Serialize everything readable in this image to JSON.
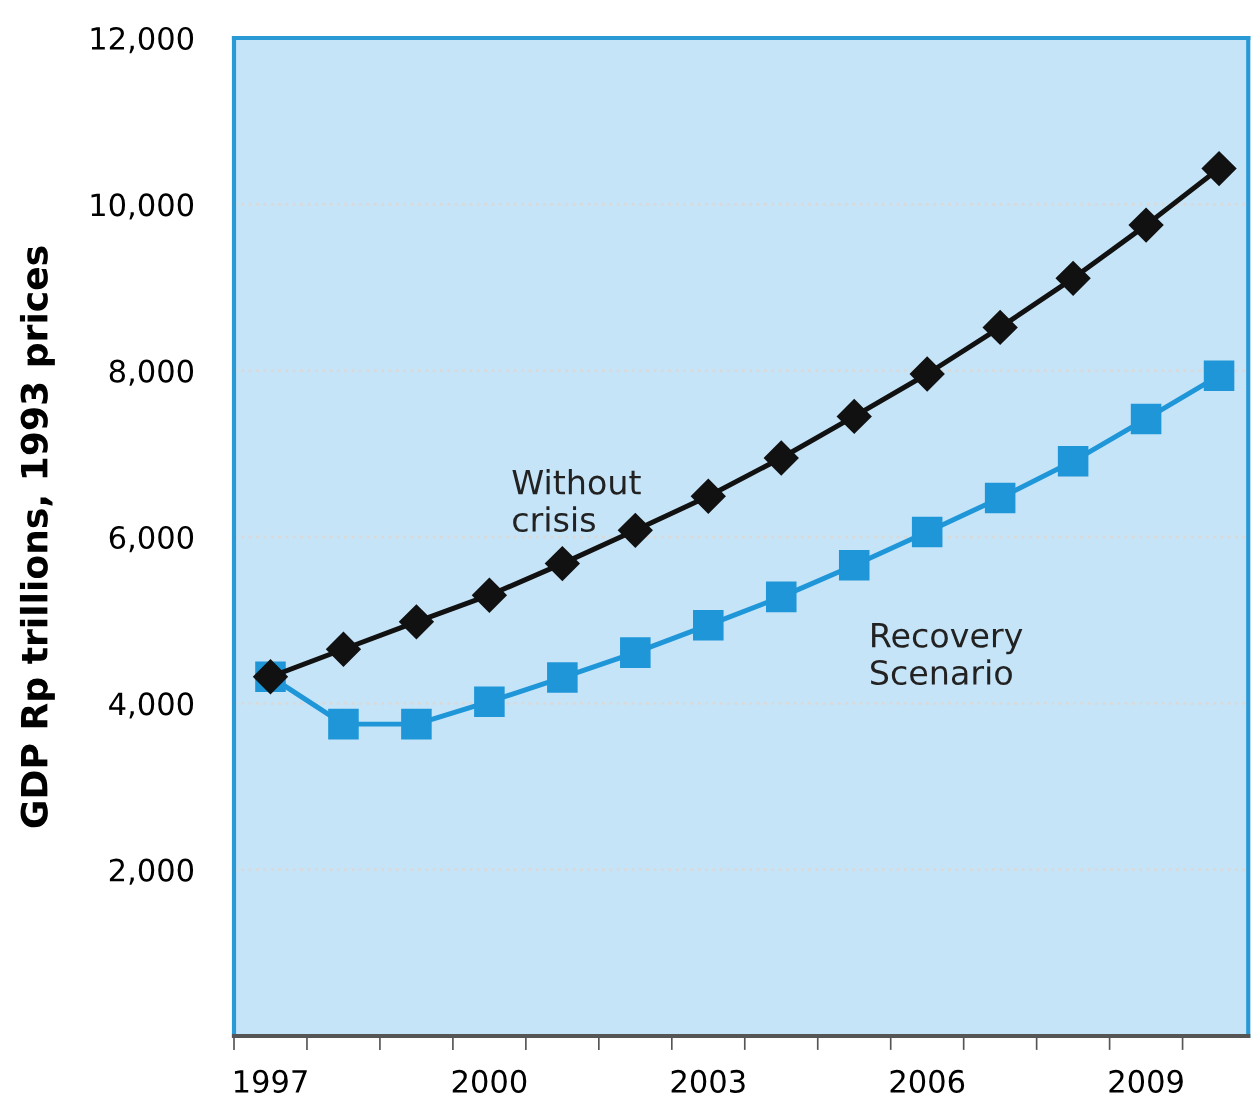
{
  "chart_data": {
    "type": "line",
    "ylabel": "GDP Rp trillions, 1993 prices",
    "categories": [
      "1997",
      null,
      null,
      "2000",
      null,
      null,
      "2003",
      null,
      null,
      "2006",
      null,
      null,
      "2009",
      null
    ],
    "series": [
      {
        "name": "Without crisis",
        "color": "#111111",
        "marker": "diamond",
        "values": [
          4320,
          4650,
          4980,
          5300,
          5680,
          6080,
          6490,
          6950,
          7450,
          7960,
          8520,
          9110,
          9750,
          10430
        ]
      },
      {
        "name": "Recovery Scenario",
        "color": "#1f96d8",
        "marker": "square",
        "values": [
          4320,
          3750,
          3750,
          4020,
          4310,
          4610,
          4940,
          5280,
          5660,
          6060,
          6470,
          6910,
          7420,
          7940
        ]
      }
    ],
    "ylim": [
      0,
      12000
    ],
    "yticks": [
      {
        "value": 2000,
        "label": "2,000"
      },
      {
        "value": 4000,
        "label": "4,000"
      },
      {
        "value": 6000,
        "label": "6,000"
      },
      {
        "value": 8000,
        "label": "8,000"
      },
      {
        "value": 10000,
        "label": "10,000"
      },
      {
        "value": 12000,
        "label": "12,000"
      }
    ],
    "grid": "y",
    "legend": false,
    "line_style": "solid"
  }
}
